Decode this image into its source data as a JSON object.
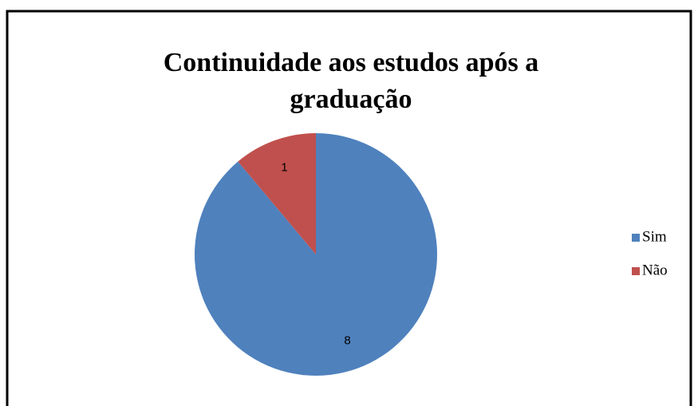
{
  "chart_data": {
    "type": "pie",
    "title": "Continuidade aos estudos após a graduação",
    "categories": [
      "Sim",
      "Não"
    ],
    "values": [
      8,
      1
    ],
    "colors": [
      "#4f81bd",
      "#c0504d"
    ],
    "legend": "right"
  }
}
